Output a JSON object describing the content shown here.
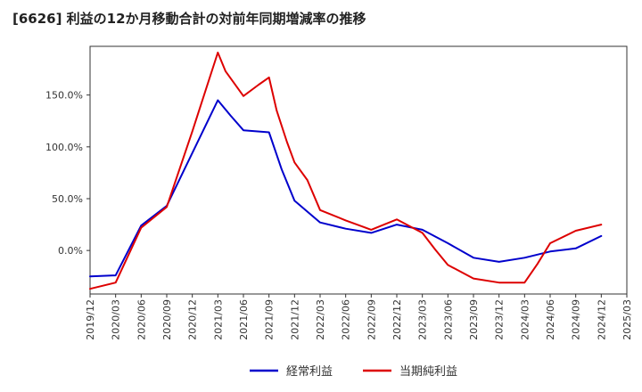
{
  "chart_data": {
    "type": "line",
    "title": "[6626]  利益の12か月移動合計の対前年同期増減率の推移",
    "xlabel": "",
    "ylabel": "",
    "ylim": [
      -42,
      197
    ],
    "yticks": [
      0,
      50,
      100,
      150
    ],
    "ytick_labels": [
      "0.0%",
      "50.0%",
      "100.0%",
      "150.0%"
    ],
    "x_tick_labels": [
      "2019/12",
      "2020/03",
      "2020/06",
      "2020/09",
      "2020/12",
      "2021/03",
      "2021/06",
      "2021/09",
      "2021/12",
      "2022/03",
      "2022/06",
      "2022/09",
      "2022/12",
      "2023/03",
      "2023/06",
      "2023/09",
      "2023/12",
      "2024/03",
      "2024/06",
      "2024/09",
      "2024/12",
      "2025/03"
    ],
    "legend_position": "bottom-center",
    "grid": true,
    "series": [
      {
        "name": "経常利益",
        "color": "#0000cc",
        "x": [
          0,
          1,
          2,
          3,
          5,
          5.5,
          6,
          7,
          7.5,
          8,
          9,
          10,
          11,
          12,
          13,
          14,
          15,
          16,
          17,
          18,
          19,
          20
        ],
        "values": [
          -25,
          -24,
          24,
          43,
          145,
          130,
          116,
          114,
          78,
          48,
          27,
          21,
          17,
          25,
          20,
          7,
          -7,
          -11,
          -7,
          -1,
          2,
          14
        ]
      },
      {
        "name": "当期純利益",
        "color": "#dd0000",
        "x": [
          0,
          1,
          2,
          3,
          4,
          5,
          5.3,
          6,
          6.6,
          7,
          7.3,
          7.7,
          8,
          8.5,
          9,
          10,
          11,
          12,
          13,
          13.5,
          14,
          15,
          16,
          17,
          17.5,
          18,
          19,
          20
        ],
        "values": [
          -37,
          -31,
          22,
          42,
          115,
          191,
          173,
          149,
          160,
          167,
          135,
          105,
          85,
          68,
          39,
          29,
          20,
          30,
          17,
          1,
          -14,
          -27,
          -31,
          -31,
          -13,
          7,
          19,
          25
        ]
      }
    ]
  }
}
